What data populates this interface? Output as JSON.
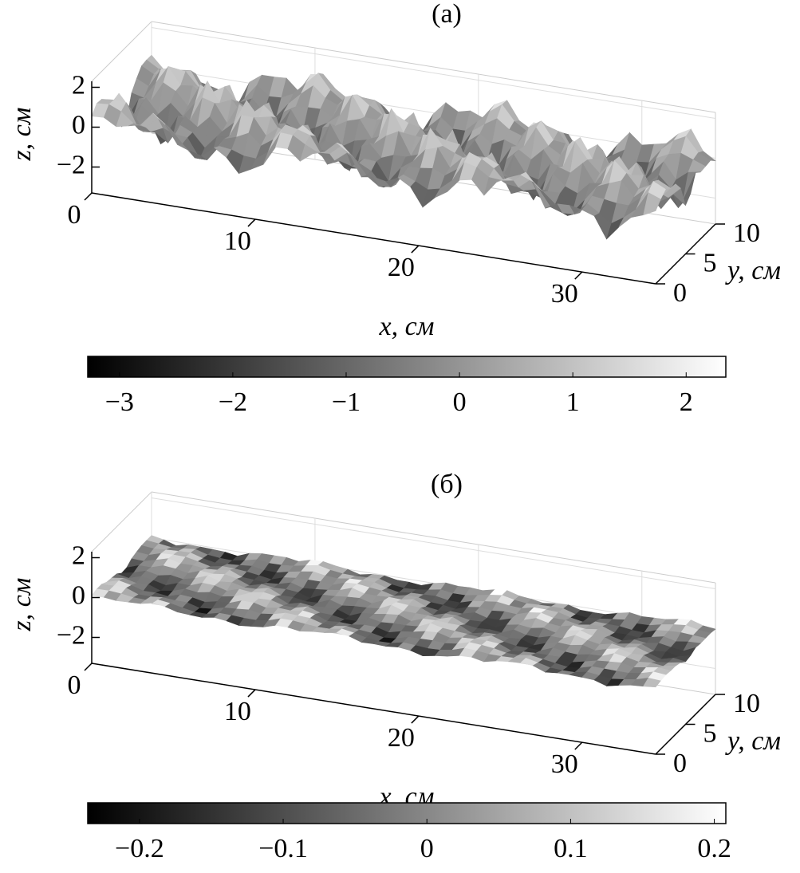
{
  "chart_data": [
    {
      "type": "surface",
      "title": "(a)",
      "xlabel": "x, см",
      "ylabel": "y, см",
      "zlabel": "z, см",
      "xlim": [
        0,
        34.5
      ],
      "xticks": [
        0,
        10,
        20,
        30
      ],
      "ylim": [
        0,
        10
      ],
      "yticks": [
        0,
        5,
        10
      ],
      "zlim": [
        -3.3,
        2.3
      ],
      "zticks": [
        {
          "value": -2,
          "label": "−2"
        },
        0,
        2
      ],
      "colorbar": {
        "lim": [
          -3.28,
          2.35
        ],
        "ticks": [
          {
            "value": -3,
            "label": "−3"
          },
          {
            "value": -2,
            "label": "−2"
          },
          {
            "value": -1,
            "label": "−1"
          },
          0,
          1,
          2
        ]
      }
    },
    {
      "type": "surface",
      "title": "(б)",
      "xlabel": "x, см",
      "ylabel": "y, см",
      "zlabel": "z, см",
      "xlim": [
        0,
        34.5
      ],
      "xticks": [
        0,
        10,
        20,
        30
      ],
      "ylim": [
        0,
        10
      ],
      "yticks": [
        0,
        5,
        10
      ],
      "zlim": [
        -3.3,
        2.3
      ],
      "zticks": [
        {
          "value": -2,
          "label": "−2"
        },
        0,
        2
      ],
      "colorbar": {
        "lim": [
          -0.236,
          0.208
        ],
        "ticks": [
          {
            "value": -0.2,
            "label": "−0.2"
          },
          {
            "value": -0.1,
            "label": "−0.1"
          },
          0,
          0.1,
          0.2
        ]
      }
    }
  ]
}
